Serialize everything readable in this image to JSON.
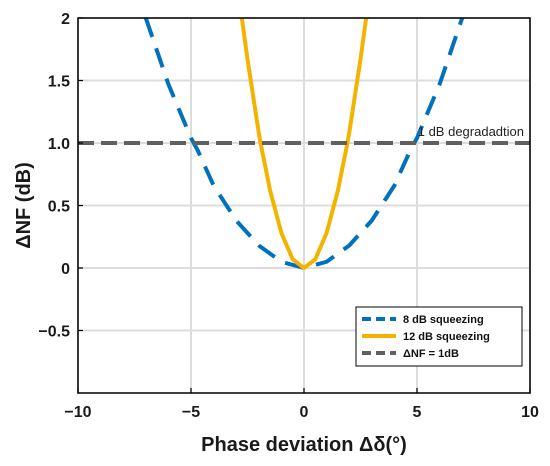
{
  "chart_data": {
    "type": "line",
    "xlabel": "Phase deviation Δδ(°)",
    "ylabel": "ΔNF (dB)",
    "xlim": [
      -10,
      10
    ],
    "ylim": [
      -1,
      2
    ],
    "xticks": [
      -10,
      -5,
      0,
      5,
      10
    ],
    "yticks": [
      -0.5,
      0,
      0.5,
      1.0,
      1.5,
      2
    ],
    "ytick_labels": [
      "-0.5",
      "0",
      "0.5",
      "1.0",
      "1.5",
      "2"
    ],
    "grid": true,
    "legend_position": "bottom-right",
    "annotation": "1 dB degradadtion",
    "series": [
      {
        "name": "8 dB squeezing",
        "style": "dashed",
        "color": "#0072BD",
        "x": [
          -7,
          -6,
          -5,
          -4.7,
          -4,
          -3,
          -2,
          -1,
          0,
          1,
          2,
          3,
          4,
          4.7,
          5,
          6,
          7
        ],
        "y": [
          2.0,
          1.47,
          1.04,
          0.94,
          0.66,
          0.38,
          0.18,
          0.05,
          0.0,
          0.05,
          0.18,
          0.38,
          0.66,
          0.94,
          1.04,
          1.47,
          2.0
        ]
      },
      {
        "name": "12 dB squeezing",
        "style": "solid",
        "color": "#F5B300",
        "x": [
          -2.75,
          -2.5,
          -2,
          -1.9,
          -1.5,
          -1,
          -0.5,
          0,
          0.5,
          1,
          1.5,
          1.9,
          2,
          2.5,
          2.75
        ],
        "y": [
          2.0,
          1.67,
          1.08,
          0.98,
          0.62,
          0.28,
          0.07,
          0.0,
          0.07,
          0.28,
          0.62,
          0.98,
          1.08,
          1.67,
          2.0
        ]
      },
      {
        "name": "ΔNF = 1dB",
        "style": "dashed",
        "color": "#606060",
        "x": [
          -10,
          10
        ],
        "y": [
          1.0,
          1.0
        ]
      }
    ]
  }
}
